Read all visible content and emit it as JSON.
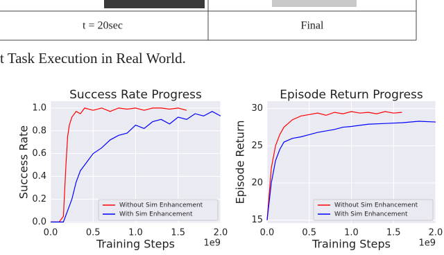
{
  "table": {
    "rows": [
      [
        "t = 20sec",
        "Final"
      ]
    ]
  },
  "caption": "t Task Execution in Real World.",
  "chart_data": [
    {
      "type": "line",
      "title": "Success Rate Progress",
      "xlabel": "Training Steps",
      "ylabel": "Success Rate",
      "x_offset": "1e9",
      "xlim": [
        -0.0,
        2.0
      ],
      "ylim": [
        -0.01,
        1.06
      ],
      "xticks": [
        {
          "value": 0,
          "label": "0.0"
        },
        {
          "value": 0.5,
          "label": "0.5"
        },
        {
          "value": 1,
          "label": "1.0"
        },
        {
          "value": 1.5,
          "label": "1.5"
        },
        {
          "value": 2,
          "label": "2.0"
        }
      ],
      "yticks": [
        {
          "value": 0,
          "label": "0.0"
        },
        {
          "value": 0.2,
          "label": "0.2"
        },
        {
          "value": 0.4,
          "label": "0.4"
        },
        {
          "value": 0.6,
          "label": "0.6"
        },
        {
          "value": 0.8,
          "label": "0.8"
        },
        {
          "value": 1,
          "label": "1.0"
        }
      ],
      "grid": true,
      "legend": "lower right",
      "series": [
        {
          "name": "Without Sim Enhancement",
          "color": "#ff0000",
          "x": [
            0,
            0.05,
            0.1,
            0.15,
            0.18,
            0.2,
            0.22,
            0.25,
            0.3,
            0.35,
            0.4,
            0.5,
            0.6,
            0.7,
            0.8,
            0.9,
            1.0,
            1.1,
            1.2,
            1.3,
            1.4,
            1.5,
            1.6
          ],
          "values": [
            0,
            0,
            0,
            0.05,
            0.5,
            0.75,
            0.85,
            0.92,
            0.97,
            0.95,
            1.0,
            0.98,
            1.0,
            0.97,
            1.0,
            0.99,
            1.0,
            0.98,
            1.0,
            1.0,
            0.99,
            1.0,
            0.98
          ]
        },
        {
          "name": "With Sim Enhancement",
          "color": "#0000ff",
          "x": [
            0,
            0.1,
            0.15,
            0.2,
            0.25,
            0.3,
            0.35,
            0.4,
            0.5,
            0.6,
            0.7,
            0.8,
            0.9,
            1.0,
            1.1,
            1.2,
            1.3,
            1.4,
            1.5,
            1.6,
            1.7,
            1.8,
            1.9,
            2.0
          ],
          "values": [
            0,
            0,
            0,
            0.1,
            0.2,
            0.35,
            0.45,
            0.5,
            0.6,
            0.65,
            0.72,
            0.76,
            0.78,
            0.85,
            0.82,
            0.88,
            0.9,
            0.86,
            0.92,
            0.9,
            0.95,
            0.93,
            0.97,
            0.93
          ]
        }
      ]
    },
    {
      "type": "line",
      "title": "Episode Return Progress",
      "xlabel": "Training Steps",
      "ylabel": "Episode Return",
      "x_offset": "1e9",
      "xlim": [
        -0.0,
        2.0
      ],
      "ylim": [
        14.6,
        31
      ],
      "xticks": [
        {
          "value": 0,
          "label": "0.0"
        },
        {
          "value": 0.5,
          "label": "0.5"
        },
        {
          "value": 1,
          "label": "1.0"
        },
        {
          "value": 1.5,
          "label": "1.5"
        },
        {
          "value": 2,
          "label": "2.0"
        }
      ],
      "yticks": [
        15,
        20,
        25,
        30
      ],
      "grid": true,
      "legend": "lower right",
      "series": [
        {
          "name": "Without Sim Enhancement",
          "color": "#ff0000",
          "x": [
            0,
            0.05,
            0.1,
            0.15,
            0.2,
            0.3,
            0.4,
            0.5,
            0.6,
            0.7,
            0.8,
            0.9,
            1.0,
            1.1,
            1.2,
            1.3,
            1.4,
            1.5,
            1.6
          ],
          "values": [
            15,
            22,
            25,
            26.5,
            27.5,
            28.5,
            29,
            29.2,
            29.4,
            29.1,
            29.5,
            29.3,
            29.6,
            29.4,
            29.5,
            29.3,
            29.6,
            29.4,
            29.5
          ]
        },
        {
          "name": "With Sim Enhancement",
          "color": "#0000ff",
          "x": [
            0,
            0.05,
            0.1,
            0.15,
            0.2,
            0.3,
            0.4,
            0.5,
            0.6,
            0.7,
            0.8,
            0.9,
            1.0,
            1.2,
            1.4,
            1.6,
            1.8,
            2.0
          ],
          "values": [
            15,
            20,
            23,
            24.5,
            25.5,
            26,
            26.2,
            26.5,
            26.8,
            27,
            27.2,
            27.5,
            27.6,
            27.9,
            28,
            28.1,
            28.3,
            28.2
          ]
        }
      ]
    }
  ]
}
